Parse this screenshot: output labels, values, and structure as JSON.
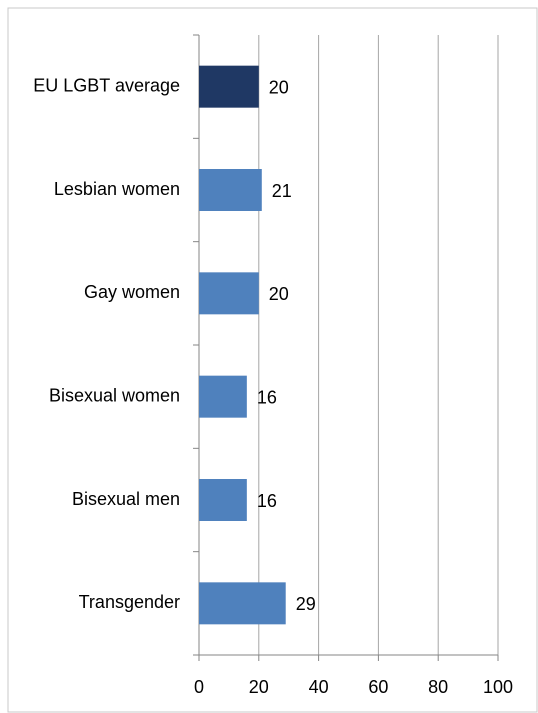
{
  "chart_data": {
    "type": "hbar",
    "categories": [
      "EU LGBT average",
      "Lesbian women",
      "Gay women",
      "Bisexual women",
      "Bisexual men",
      "Transgender"
    ],
    "values": [
      20,
      21,
      20,
      16,
      16,
      29
    ],
    "colors": [
      "#1f3864",
      "#4f81bd",
      "#4f81bd",
      "#4f81bd",
      "#4f81bd",
      "#4f81bd"
    ],
    "xlim": [
      0,
      100
    ],
    "xticks": [
      0,
      20,
      40,
      60,
      80,
      100
    ],
    "grid": true
  }
}
